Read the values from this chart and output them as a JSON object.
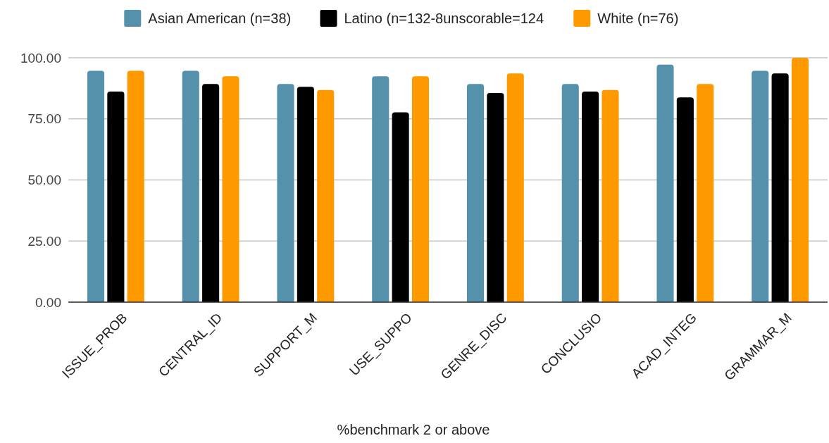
{
  "chart_data": {
    "type": "bar",
    "xlabel": "%benchmark 2 or above",
    "categories": [
      "ISSUE_PROB",
      "CENTRAL_ID",
      "SUPPORT_M",
      "USE_SUPPO",
      "GENRE_DISC",
      "CONCLUSIO",
      "ACAD_INTEG",
      "GRAMMAR_M"
    ],
    "series": [
      {
        "name": "Asian American (n=38)",
        "color": "#5691ab",
        "values": [
          94.7,
          94.7,
          89.3,
          92.4,
          89.3,
          89.3,
          97.2,
          94.7
        ]
      },
      {
        "name": "Latino (n=132-8unscorable=124",
        "color": "#000000",
        "values": [
          86.2,
          89.3,
          88.1,
          77.7,
          85.6,
          86.2,
          83.8,
          93.6
        ]
      },
      {
        "name": "White (n=76)",
        "color": "#ff9900",
        "values": [
          94.7,
          92.4,
          86.8,
          92.4,
          93.6,
          86.8,
          89.3,
          100
        ]
      }
    ],
    "ylim": [
      0,
      100
    ],
    "yticks": [
      {
        "value": 0,
        "label": "0.00"
      },
      {
        "value": 25,
        "label": "25.00"
      },
      {
        "value": 50,
        "label": "50.00"
      },
      {
        "value": 75,
        "label": "75.00"
      },
      {
        "value": 100,
        "label": "100.00"
      }
    ],
    "grid": "y",
    "legend": "top"
  }
}
